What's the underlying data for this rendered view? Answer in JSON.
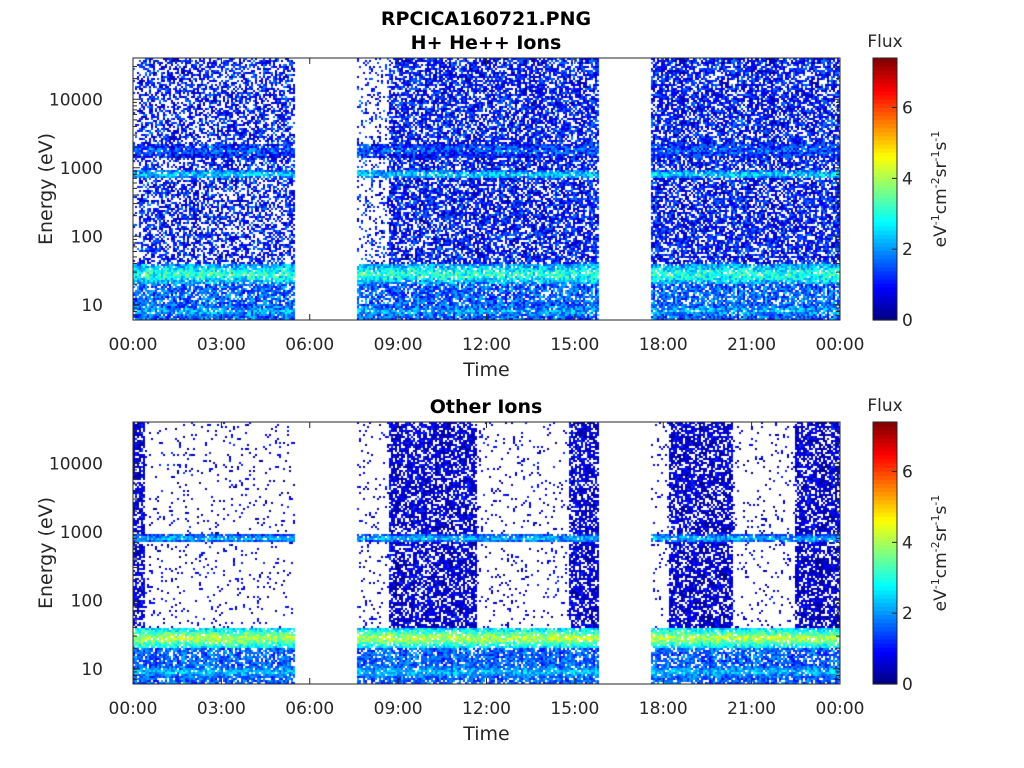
{
  "figure": {
    "title_line1": "RPCICA160721.PNG",
    "title_line2": "H+ He++ Ions",
    "panel2_title": "Other Ions"
  },
  "chart_data": [
    {
      "type": "heatmap",
      "title": "RPCICA160721.PNG H+ He++ Ions",
      "xlabel": "Time",
      "ylabel": "Energy (eV)",
      "x_ticks": [
        "00:00",
        "03:00",
        "06:00",
        "09:00",
        "12:00",
        "15:00",
        "18:00",
        "21:00",
        "00:00"
      ],
      "x_range_hours": [
        0,
        24
      ],
      "y_ticks": [
        {
          "value": 10,
          "label": "10"
        },
        {
          "value": 100,
          "label": "100"
        },
        {
          "value": 1000,
          "label": "1000"
        },
        {
          "value": 10000,
          "label": "10000"
        }
      ],
      "y_scale": "log",
      "y_range": [
        6,
        40000
      ],
      "colorbar": {
        "title": "Flux",
        "range": [
          0,
          7.4
        ],
        "ticks": [
          0,
          2,
          4,
          6
        ],
        "colormap": "jet"
      },
      "data_gaps_hours": [
        [
          5.5,
          7.6
        ],
        [
          15.8,
          17.6
        ]
      ],
      "structure": {
        "background_level": 1.0,
        "noise": 0.8,
        "bands": [
          {
            "energy_ev": 800,
            "level": 2.6,
            "width_decades": 0.06
          },
          {
            "energy_ev": 1800,
            "level": 1.6,
            "width_decades": 0.1
          },
          {
            "energy_ev": 28,
            "level": 3.2,
            "width_decades": 0.15
          },
          {
            "energy_ev": 8,
            "level": 2.2,
            "width_decades": 0.12
          }
        ],
        "low_activity_hours": [
          [
            0,
            0.2
          ],
          [
            7.6,
            8.7
          ]
        ],
        "active_hours": [
          [
            8.7,
            15.8
          ],
          [
            17.6,
            24
          ]
        ],
        "cold_band_peak": {
          "energy_ev": 30,
          "level": 4.2,
          "hours": [
            8.8,
            15.8
          ]
        }
      }
    },
    {
      "type": "heatmap",
      "title": "Other Ions",
      "xlabel": "Time",
      "ylabel": "Energy (eV)",
      "x_ticks": [
        "00:00",
        "03:00",
        "06:00",
        "09:00",
        "12:00",
        "15:00",
        "18:00",
        "21:00",
        "00:00"
      ],
      "x_range_hours": [
        0,
        24
      ],
      "y_ticks": [
        {
          "value": 10,
          "label": "10"
        },
        {
          "value": 100,
          "label": "100"
        },
        {
          "value": 1000,
          "label": "1000"
        },
        {
          "value": 10000,
          "label": "10000"
        }
      ],
      "y_scale": "log",
      "y_range": [
        6,
        40000
      ],
      "colorbar": {
        "title": "Flux",
        "range": [
          0,
          7.4
        ],
        "ticks": [
          0,
          2,
          4,
          6
        ],
        "colormap": "jet"
      },
      "data_gaps_hours": [
        [
          5.5,
          7.6
        ],
        [
          15.8,
          17.6
        ]
      ],
      "structure": {
        "background_level": 0.6,
        "noise": 0.6,
        "sparse": true,
        "bands": [
          {
            "energy_ev": 800,
            "level": 2.4,
            "width_decades": 0.05
          },
          {
            "energy_ev": 28,
            "level": 4.2,
            "width_decades": 0.14
          },
          {
            "energy_ev": 9,
            "level": 2.4,
            "width_decades": 0.1
          }
        ],
        "dense_blocks_hours": [
          [
            0,
            0.4
          ],
          [
            8.7,
            11.7
          ],
          [
            14.8,
            15.8
          ],
          [
            18.2,
            20.4
          ],
          [
            22.5,
            24
          ]
        ],
        "cold_band_peak": {
          "energy_ev": 32,
          "level": 5.0,
          "hours": [
            21.2,
            23.0
          ]
        }
      }
    }
  ]
}
